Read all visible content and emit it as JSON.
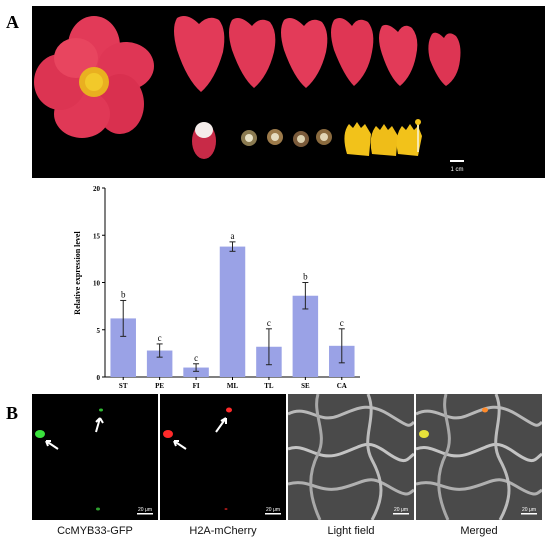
{
  "figure": {
    "panel_a_label": "A",
    "panel_b_label": "B",
    "photo_scale_bar": "1 cm",
    "colors": {
      "petal": "#e23a58",
      "petal_dark": "#b8203c",
      "stamen": "#f2c21a",
      "bar": "#9aa2e6",
      "gfp": "#39e23c",
      "mcherry": "#ff2a2a"
    }
  },
  "chart_data": {
    "type": "bar",
    "categories": [
      "ST",
      "PE",
      "FI",
      "ML",
      "TL",
      "SE",
      "CA"
    ],
    "values": [
      6.2,
      2.8,
      1.0,
      13.8,
      3.2,
      8.6,
      3.3
    ],
    "errors": [
      1.9,
      0.7,
      0.4,
      0.5,
      1.9,
      1.4,
      1.8
    ],
    "significance": [
      "b",
      "c",
      "c",
      "a",
      "c",
      "b",
      "c"
    ],
    "ylabel": "Relative expression level",
    "ylim": [
      0,
      20
    ],
    "yticks": [
      "0",
      "5",
      "10",
      "15",
      "20"
    ],
    "grid": false
  },
  "panel_b": {
    "scale_bar": "20 μm",
    "captions": [
      "CcMYB33-GFP",
      "H2A-mCherry",
      "Light field",
      "Merged"
    ]
  }
}
